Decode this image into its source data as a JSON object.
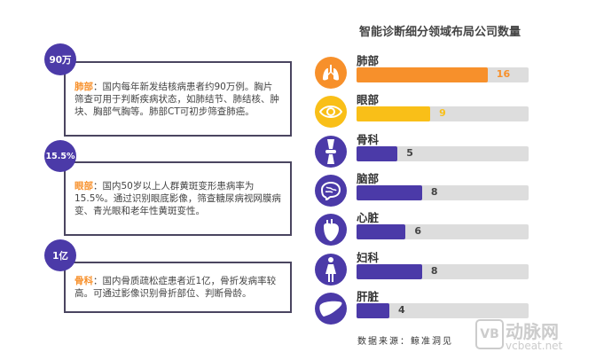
{
  "callouts": [
    {
      "badge": "90万",
      "label": "肺部",
      "text": "：国内每年新发结核病患者约90万例。胸片筛查可用于判断疾病状态，如肺结节、肺结核、肿块、胸部气胸等。肺部CT可初步筛查肺癌。"
    },
    {
      "badge": "15.5%",
      "label": "眼部",
      "text": "：国内50岁以上人群黄斑变形患病率为15.5%。通过识别眼底影像，筛查糖尿病视网膜病变、青光眼和老年性黄斑变性。"
    },
    {
      "badge": "1亿",
      "label": "骨科",
      "text": "：国内骨质疏松症患者近1亿，骨折发病率较高。可通过影像识别骨折部位、判断骨龄。"
    }
  ],
  "chart_data": {
    "type": "bar",
    "orientation": "horizontal",
    "title": "智能诊断细分领域布局公司数量",
    "categories": [
      "肺部",
      "眼部",
      "骨科",
      "脑部",
      "心脏",
      "妇科",
      "肝脏"
    ],
    "values": [
      16,
      9,
      5,
      8,
      6,
      8,
      4
    ],
    "icons": [
      "lungs-icon",
      "eye-icon",
      "bone-joint-icon",
      "brain-icon",
      "heart-icon",
      "woman-icon",
      "liver-icon"
    ],
    "bar_colors": [
      "#f7902b",
      "#f9bf18",
      "#4b3aa8",
      "#4b3aa8",
      "#4b3aa8",
      "#4b3aa8",
      "#4b3aa8"
    ],
    "track_color": "#dddddd",
    "source": "数据来源：鲸准洞见"
  },
  "watermark": {
    "name": "动脉网",
    "url_text": "vcbeat.net",
    "logo": "VB"
  }
}
